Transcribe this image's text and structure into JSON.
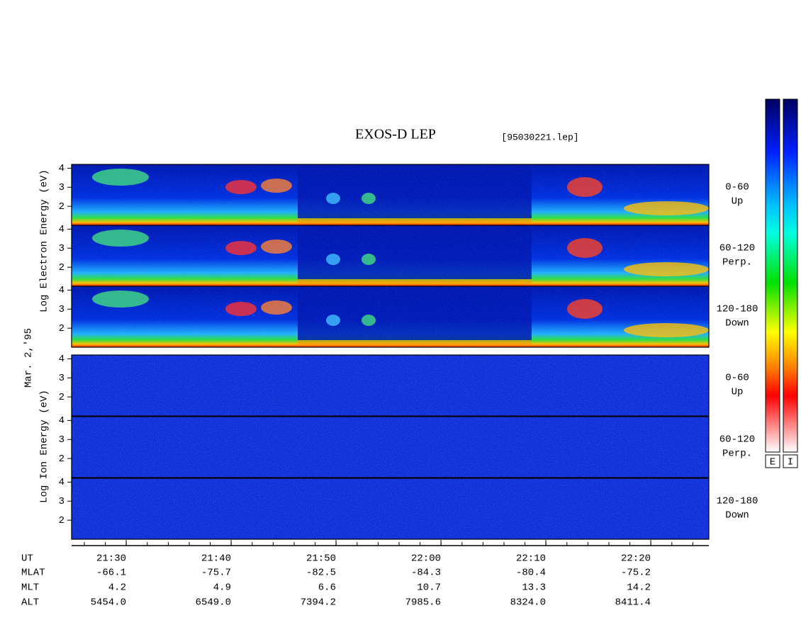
{
  "chart_data": {
    "type": "spectrogram",
    "title": "EXOS-D LEP",
    "file": "[95030221.lep]",
    "date": "Mar. 2,'95",
    "electron_ylabel": "Log Electron Energy (eV)",
    "ion_ylabel": "Log Ion Energy (eV)",
    "ylim": [
      1,
      4.2
    ],
    "yticks": [
      2,
      3,
      4
    ],
    "panels": [
      {
        "species": "electron",
        "angle": "0-60",
        "direction": "Up"
      },
      {
        "species": "electron",
        "angle": "60-120",
        "direction": "Perp."
      },
      {
        "species": "electron",
        "angle": "120-180",
        "direction": "Down"
      },
      {
        "species": "ion",
        "angle": "0-60",
        "direction": "Up"
      },
      {
        "species": "ion",
        "angle": "60-120",
        "direction": "Perp."
      },
      {
        "species": "ion",
        "angle": "120-180",
        "direction": "Down"
      }
    ],
    "colorbar_labels": [
      "E",
      "I"
    ],
    "row_names": [
      "UT",
      "MLAT",
      "MLT",
      "ALT"
    ],
    "rows": [
      [
        "21:30",
        "21:40",
        "21:50",
        "22:00",
        "22:10",
        "22:20"
      ],
      [
        "-66.1",
        "-75.7",
        "-82.5",
        "-84.3",
        "-80.4",
        "-75.2"
      ],
      [
        "4.2",
        "4.9",
        "6.6",
        "10.7",
        "13.3",
        "14.2"
      ],
      [
        "5454.0",
        "6549.0",
        "7394.2",
        "7985.6",
        "8324.0",
        "8411.4"
      ]
    ]
  }
}
